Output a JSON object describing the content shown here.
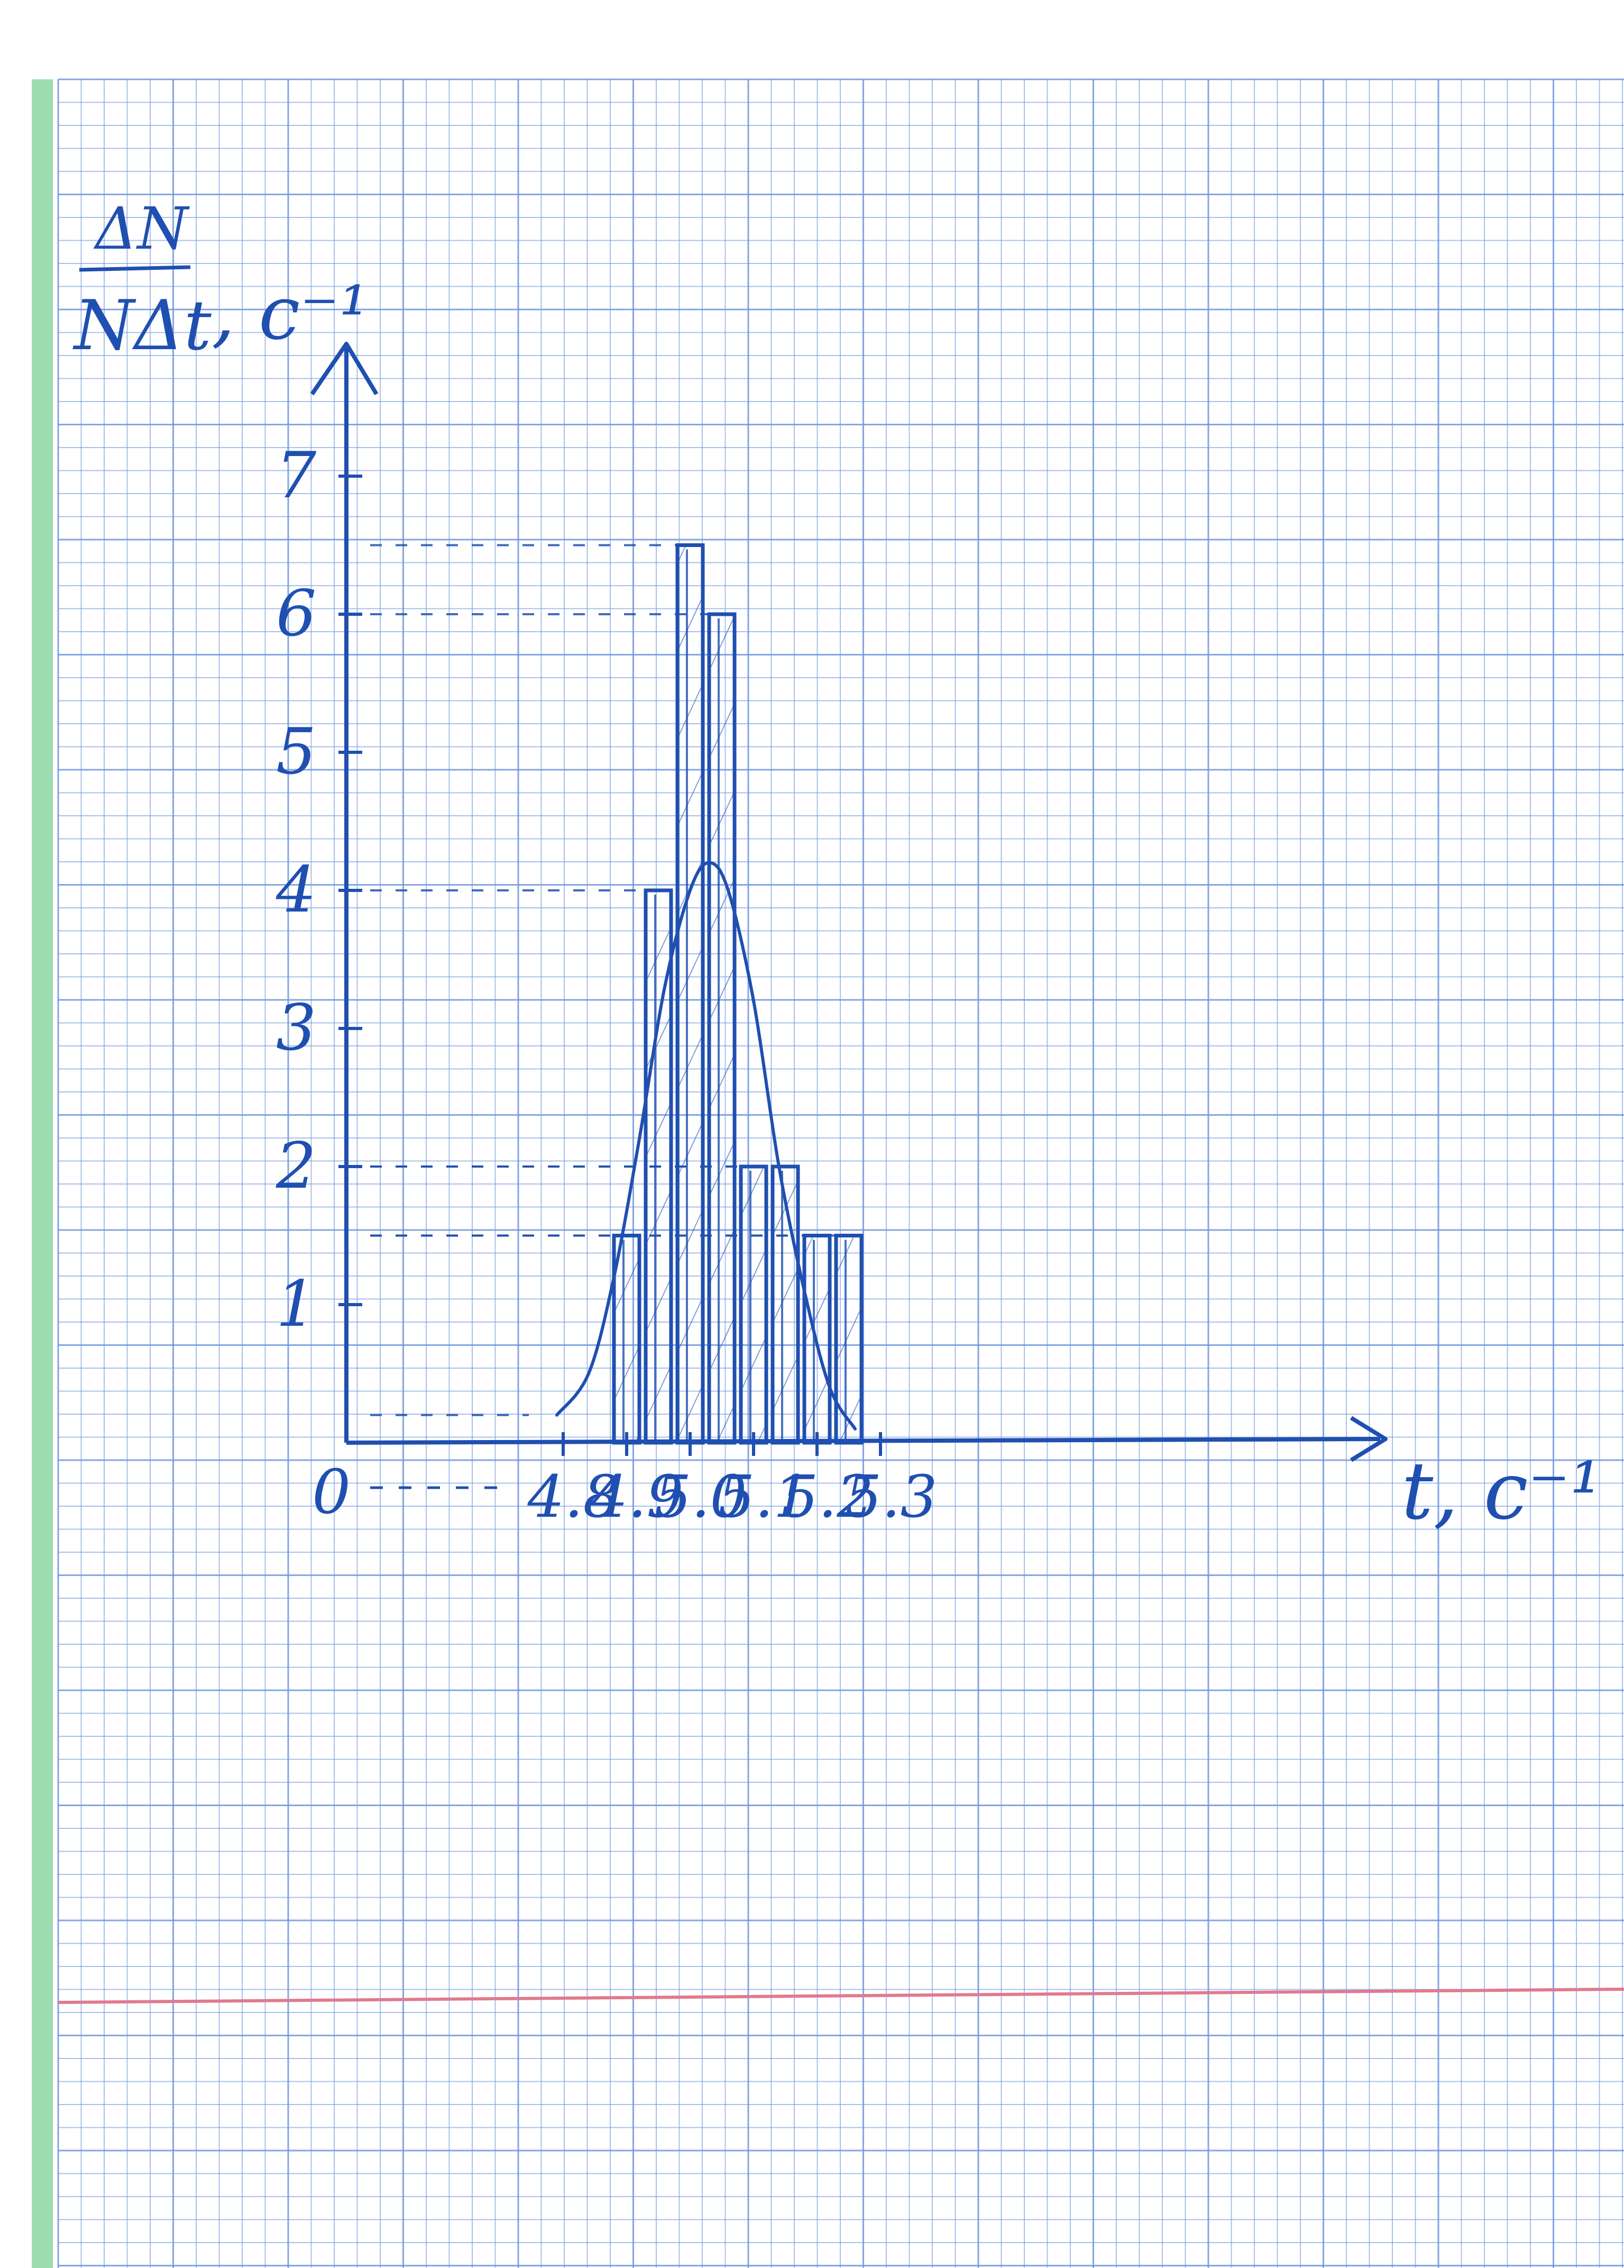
{
  "colors": {
    "ink": "#1f4fb0",
    "grid": "#6f97de",
    "margin_line": "#e07a90",
    "paper": "#ffffff",
    "edge": "#9ddcae"
  },
  "chart_data": {
    "type": "bar",
    "bin_width": 0.05,
    "bins": [
      {
        "x0": 4.875,
        "x1": 4.925,
        "value": 1.5
      },
      {
        "x0": 4.925,
        "x1": 4.975,
        "value": 4
      },
      {
        "x0": 4.975,
        "x1": 5.025,
        "value": 6.5
      },
      {
        "x0": 5.025,
        "x1": 5.075,
        "value": 6
      },
      {
        "x0": 5.075,
        "x1": 5.125,
        "value": 2
      },
      {
        "x0": 5.125,
        "x1": 5.175,
        "value": 2
      },
      {
        "x0": 5.175,
        "x1": 5.225,
        "value": 1.5
      },
      {
        "x0": 5.225,
        "x1": 5.275,
        "value": 1.5
      }
    ],
    "curve": {
      "type": "line",
      "x": [
        4.79,
        4.84,
        4.88,
        4.92,
        4.96,
        5.0,
        5.03,
        5.06,
        5.1,
        5.14,
        5.18,
        5.22,
        5.26
      ],
      "y": [
        0.2,
        0.5,
        1.2,
        2.2,
        3.3,
        4.0,
        4.2,
        4.0,
        3.2,
        2.0,
        1.1,
        0.4,
        0.1
      ]
    },
    "x_ticks": [
      "4.8",
      "4.9",
      "5.0",
      "5.1",
      "5.2",
      "5.3"
    ],
    "y_ticks": [
      "1",
      "2",
      "3",
      "4",
      "5",
      "6",
      "7"
    ],
    "origin_label": "0",
    "xlabel": "t, c⁻¹",
    "ylabel_num": "ΔN",
    "ylabel_den": "NΔt",
    "ylabel_unit": ", c⁻¹",
    "xlim": [
      4.75,
      5.35
    ],
    "ylim": [
      0,
      7.4
    ],
    "grid": true
  }
}
